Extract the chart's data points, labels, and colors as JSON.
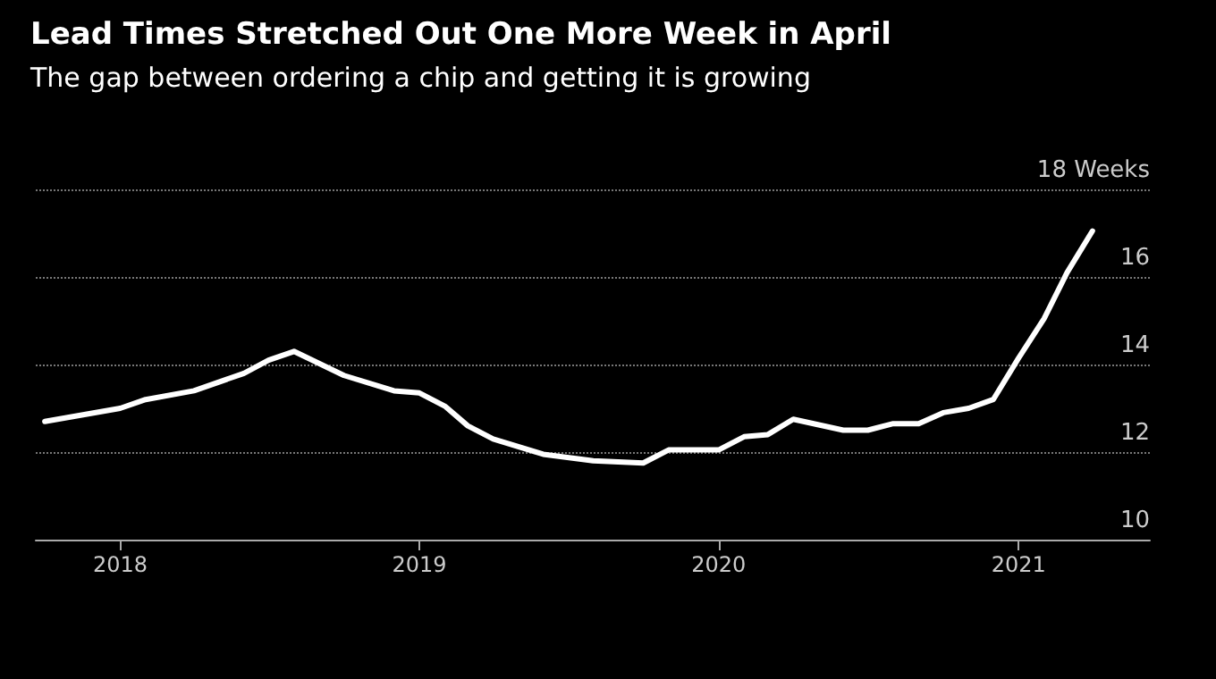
{
  "chart_data": {
    "type": "line",
    "title": "Lead Times Stretched Out One More Week in April",
    "subtitle": "The gap between ordering a chip and getting it is growing",
    "x": [
      "2017-10",
      "2018-01",
      "2018-02",
      "2018-04",
      "2018-06",
      "2018-07",
      "2018-08",
      "2018-10",
      "2018-12",
      "2019-01",
      "2019-02",
      "2019-03",
      "2019-04",
      "2019-06",
      "2019-08",
      "2019-10",
      "2019-11",
      "2020-01",
      "2020-02",
      "2020-03",
      "2020-04",
      "2020-06",
      "2020-07",
      "2020-08",
      "2020-09",
      "2020-10",
      "2020-11",
      "2020-12",
      "2021-01",
      "2021-02",
      "2021-03",
      "2021-04"
    ],
    "values": [
      12.7,
      13.0,
      13.2,
      13.4,
      13.8,
      14.1,
      14.3,
      13.75,
      13.4,
      13.35,
      13.05,
      12.6,
      12.3,
      11.95,
      11.8,
      11.75,
      12.05,
      12.05,
      12.35,
      12.4,
      12.75,
      12.5,
      12.5,
      12.65,
      12.65,
      12.9,
      13.0,
      13.2,
      14.15,
      15.05,
      16.1,
      17.05
    ],
    "color": "#ffffff",
    "marker": "none",
    "line_style": "solid",
    "xlim": [
      "2017-09-20",
      "2021-06-10"
    ],
    "xticks": [
      "2018",
      "2019",
      "2020",
      "2021"
    ],
    "ylim": [
      10,
      18
    ],
    "yticks": [
      10,
      12,
      14,
      16,
      {
        "value": 18,
        "label": "18 Weeks"
      }
    ],
    "grid": "y"
  }
}
